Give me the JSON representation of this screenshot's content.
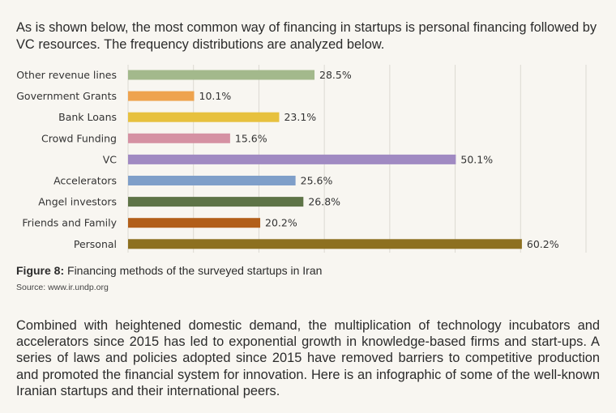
{
  "intro_text": "As is shown below, the most common way of financing in startups is personal financing followed by VC resources. The frequency distributions are analyzed below.",
  "caption": {
    "label": "Figure 8:",
    "text": " Financing methods of the surveyed startups in Iran"
  },
  "source": "Source: www.ir.undp.org",
  "body_text": "Combined with heightened domestic demand, the multiplication of technology incubators and accelerators since 2015 has led to exponential growth in knowledge-based firms and start-ups. A series of laws and policies adopted since 2015 have removed barriers to competitive production and promoted the financial system for innovation. Here is an infographic of some of the well-known Iranian startups and their international peers.",
  "chart_data": {
    "type": "bar",
    "orientation": "horizontal",
    "categories": [
      "Other revenue lines",
      "Government Grants",
      "Bank Loans",
      "Crowd Funding",
      "VC",
      "Accelerators",
      "Angel investors",
      "Friends and Family",
      "Personal"
    ],
    "values": [
      28.5,
      10.1,
      23.1,
      15.6,
      50.1,
      25.6,
      26.8,
      20.2,
      60.2
    ],
    "value_labels": [
      "28.5%",
      "10.1%",
      "23.1%",
      "15.6%",
      "50.1%",
      "25.6%",
      "26.8%",
      "20.2%",
      "60.2%"
    ],
    "colors": [
      "#a3b98c",
      "#eea34e",
      "#e7c13e",
      "#d591a3",
      "#a08ac2",
      "#7f9fc9",
      "#5e7447",
      "#b25f1a",
      "#8d7020"
    ],
    "xlim": [
      0,
      70
    ],
    "grid": true,
    "title": "",
    "xlabel": "",
    "ylabel": ""
  }
}
